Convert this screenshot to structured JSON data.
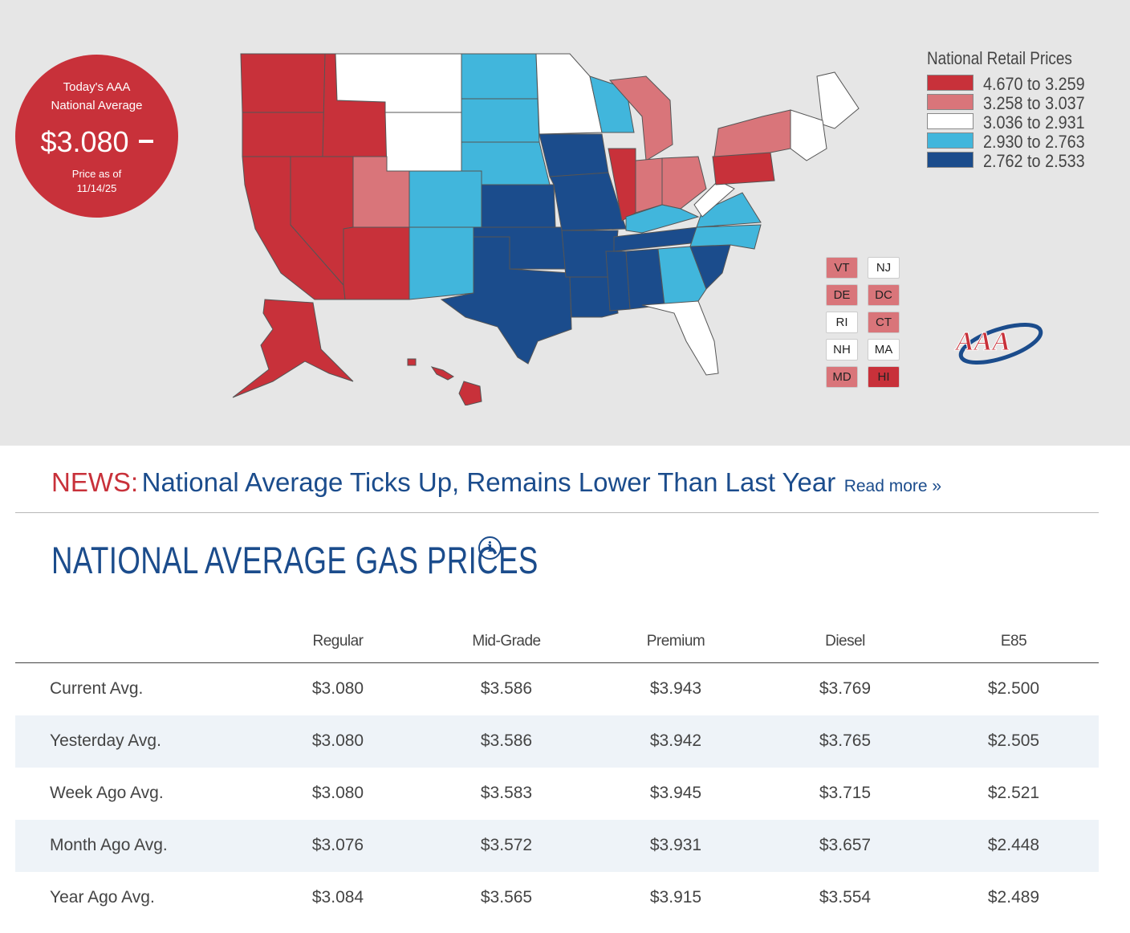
{
  "badge": {
    "line1": "Today's AAA",
    "line2": "National Average",
    "price": "$3.080",
    "as_of_label": "Price as of",
    "as_of_date": "11/14/25"
  },
  "legend": {
    "title": "National Retail Prices",
    "ranges": [
      {
        "label": "4.670 to 3.259",
        "color": "#c8313a"
      },
      {
        "label": "3.258 to 3.037",
        "color": "#d9757a"
      },
      {
        "label": "3.036 to 2.931",
        "color": "#ffffff"
      },
      {
        "label": "2.930 to 2.763",
        "color": "#41b6dc"
      },
      {
        "label": "2.762 to 2.533",
        "color": "#1b4c8c"
      }
    ]
  },
  "small_states": [
    {
      "abbr": "VT",
      "color": "#d9757a"
    },
    {
      "abbr": "NJ",
      "color": "#ffffff"
    },
    {
      "abbr": "DE",
      "color": "#d9757a"
    },
    {
      "abbr": "DC",
      "color": "#d9757a"
    },
    {
      "abbr": "RI",
      "color": "#ffffff"
    },
    {
      "abbr": "CT",
      "color": "#d9757a"
    },
    {
      "abbr": "NH",
      "color": "#ffffff"
    },
    {
      "abbr": "MA",
      "color": "#ffffff"
    },
    {
      "abbr": "MD",
      "color": "#d9757a"
    },
    {
      "abbr": "HI",
      "color": "#c8313a"
    }
  ],
  "logo_text": "AAA",
  "news": {
    "tag": "NEWS:",
    "headline": "National Average Ticks Up, Remains Lower Than Last Year",
    "read_more": "Read more »"
  },
  "section_title": "NATIONAL AVERAGE GAS PRICES",
  "info_icon_glyph": "i",
  "table": {
    "columns": [
      "Regular",
      "Mid-Grade",
      "Premium",
      "Diesel",
      "E85"
    ],
    "rows": [
      {
        "label": "Current Avg.",
        "values": [
          "$3.080",
          "$3.586",
          "$3.943",
          "$3.769",
          "$2.500"
        ]
      },
      {
        "label": "Yesterday Avg.",
        "values": [
          "$3.080",
          "$3.586",
          "$3.942",
          "$3.765",
          "$2.505"
        ]
      },
      {
        "label": "Week Ago Avg.",
        "values": [
          "$3.080",
          "$3.583",
          "$3.945",
          "$3.715",
          "$2.521"
        ]
      },
      {
        "label": "Month Ago Avg.",
        "values": [
          "$3.076",
          "$3.572",
          "$3.931",
          "$3.657",
          "$2.448"
        ]
      },
      {
        "label": "Year Ago Avg.",
        "values": [
          "$3.084",
          "$3.565",
          "$3.915",
          "$3.554",
          "$2.489"
        ]
      }
    ]
  }
}
